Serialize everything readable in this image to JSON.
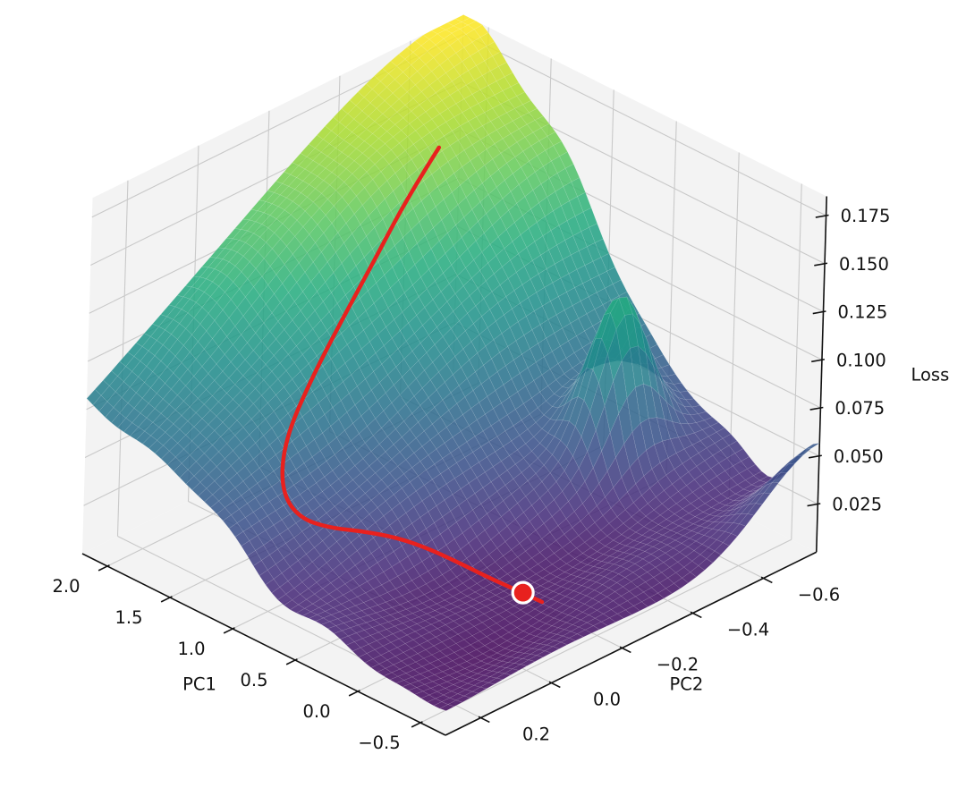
{
  "colors": {
    "background": "#ffffff",
    "pane": "#f3f3f3",
    "pane_grid": "#c9c9c9",
    "axis_line": "#111111",
    "tick_text": "#111111",
    "trajectory_red": "#e8211e",
    "marker_edge_white": "#ffffff"
  },
  "chart_data": {
    "type": "3d-surface",
    "title": "",
    "x_axis": {
      "label": "PC1",
      "tick_labels": [
        "2.0",
        "1.5",
        "1.0",
        "0.5",
        "0.0",
        "−0.5"
      ],
      "tick_values": [
        2.0,
        1.5,
        1.0,
        0.5,
        0.0,
        -0.5
      ],
      "range": [
        -0.7,
        2.2
      ]
    },
    "y_axis": {
      "label": "PC2",
      "tick_labels": [
        "0.2",
        "0.0",
        "−0.2",
        "−0.4",
        "−0.6"
      ],
      "tick_values": [
        0.2,
        0.0,
        -0.2,
        -0.4,
        -0.6
      ],
      "range": [
        -0.75,
        0.3
      ]
    },
    "z_axis": {
      "label": "Loss",
      "tick_labels": [
        "0.025",
        "0.050",
        "0.075",
        "0.100",
        "0.125",
        "0.150",
        "0.175"
      ],
      "tick_values": [
        0.025,
        0.05,
        0.075,
        0.1,
        0.125,
        0.15,
        0.175
      ],
      "range": [
        0.0,
        0.185
      ]
    },
    "colormap": {
      "name": "viridis",
      "stops": [
        "#440154",
        "#472d7b",
        "#3b528b",
        "#2c728e",
        "#21918c",
        "#28ae80",
        "#5ec962",
        "#addc30",
        "#fde725"
      ]
    },
    "surface": {
      "opacity": 0.87,
      "mesh": {
        "nu": 58,
        "nv": 46
      },
      "base_loss": 0.018,
      "clamp": [
        0.006,
        0.185
      ],
      "features": [
        {
          "name": "main-peak",
          "amp": 0.167,
          "cu": 2.2,
          "cv": -0.75,
          "su": 1.45,
          "sv": 1.05
        },
        {
          "name": "secondary-spike",
          "amp": 0.07,
          "cu": 0.35,
          "cv": -0.55,
          "su": 0.18,
          "sv": 0.1
        },
        {
          "name": "corner-bump",
          "amp": 0.035,
          "cu": -0.7,
          "cv": -0.75,
          "su": 0.28,
          "sv": 0.22
        },
        {
          "name": "front-basin",
          "amp": -0.014,
          "cu": 0.15,
          "cv": -0.05,
          "su": 1.0,
          "sv": 0.45
        }
      ],
      "ripples": [
        {
          "amp": 0.0035,
          "fu": 5.5,
          "pu": 1.0,
          "fv": 6.0,
          "pv": -0.5
        },
        {
          "amp": 0.0025,
          "fu": 9.0,
          "pu": 2.0,
          "fv": 8.0,
          "pv": 1.5708
        }
      ]
    },
    "trajectory": {
      "color": "#e8211e",
      "line_width": 4.5,
      "points_pc1_pc2": [
        [
          1.65,
          -0.49
        ],
        [
          1.58,
          -0.38
        ],
        [
          1.5,
          -0.26
        ],
        [
          1.42,
          -0.14
        ],
        [
          1.33,
          -0.03
        ],
        [
          1.23,
          0.07
        ],
        [
          1.12,
          0.13
        ],
        [
          1.0,
          0.16
        ],
        [
          0.88,
          0.155
        ],
        [
          0.76,
          0.12
        ],
        [
          0.64,
          0.07
        ],
        [
          0.52,
          0.01
        ],
        [
          0.4,
          -0.045
        ],
        [
          0.27,
          -0.085
        ],
        [
          0.13,
          -0.105
        ],
        [
          -0.02,
          -0.115
        ],
        [
          -0.17,
          -0.12
        ],
        [
          -0.27,
          -0.123
        ]
      ]
    },
    "end_marker": {
      "point_pc1_pc2": [
        -0.14,
        -0.115
      ],
      "radius": 11.5,
      "fill": "#e8211e",
      "edge_color": "#ffffff",
      "edge_width": 3.2
    }
  }
}
